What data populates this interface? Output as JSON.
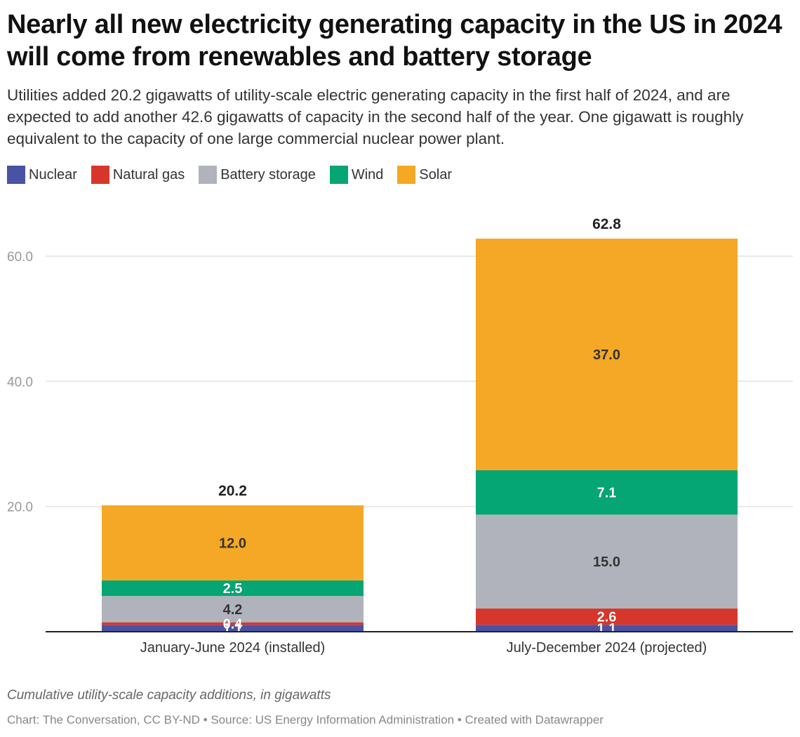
{
  "title": "Nearly all new electricity generating capacity in the US in 2024 will come from renewables and battery storage",
  "subtitle": "Utilities added 20.2 gigawatts of utility-scale electric generating capacity in the first half of 2024, and are expected to add another 42.6 gigawatts of capacity in the second half of the year. One gigawatt is roughly equivalent to the capacity of one large commercial nuclear power plant.",
  "description": "Cumulative utility-scale capacity additions, in gigawatts",
  "credit": "Chart: The Conversation, CC BY-ND • Source: US Energy Information Administration • Created with Datawrapper",
  "legend": [
    {
      "label": "Nuclear",
      "color": "#4a52a4"
    },
    {
      "label": "Natural gas",
      "color": "#d7372a"
    },
    {
      "label": "Battery storage",
      "color": "#b1b3bc"
    },
    {
      "label": "Wind",
      "color": "#05a574"
    },
    {
      "label": "Solar",
      "color": "#f4a825"
    }
  ],
  "chart_data": {
    "type": "bar",
    "stacked": true,
    "categories": [
      "January-June 2024 (installed)",
      "July-December 2024 (projected)"
    ],
    "series": [
      {
        "name": "Nuclear",
        "color": "#4a52a4",
        "values": [
          1.1,
          1.1
        ]
      },
      {
        "name": "Natural gas",
        "color": "#d7372a",
        "values": [
          0.4,
          2.6
        ]
      },
      {
        "name": "Battery storage",
        "color": "#b1b3bc",
        "values": [
          4.2,
          15.0
        ]
      },
      {
        "name": "Wind",
        "color": "#05a574",
        "values": [
          2.5,
          7.1
        ]
      },
      {
        "name": "Solar",
        "color": "#f4a825",
        "values": [
          12.0,
          37.0
        ]
      }
    ],
    "totals": [
      "20.2",
      "62.8"
    ],
    "value_labels": [
      [
        "1.1",
        "0.4",
        "4.2",
        "2.5",
        "12.0"
      ],
      [
        "1.1",
        "2.6",
        "15.0",
        "7.1",
        "37.0"
      ]
    ],
    "yticks": [
      "20.0",
      "40.0",
      "60.0"
    ],
    "ytick_values": [
      20,
      40,
      60
    ],
    "ylim": [
      0,
      62.8
    ],
    "grid": true,
    "legend_position": "top-left"
  }
}
